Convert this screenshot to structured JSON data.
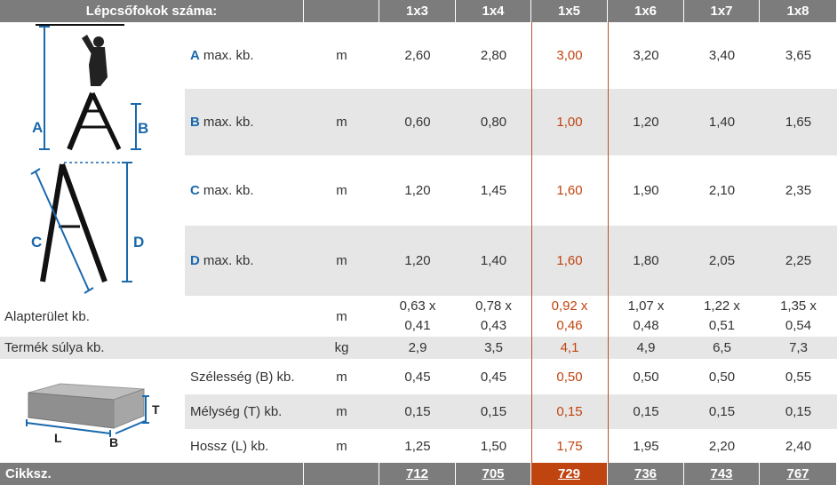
{
  "header": {
    "title": "Lépcsőfokok száma:",
    "columns": [
      "1x3",
      "1x4",
      "1x5",
      "1x6",
      "1x7",
      "1x8"
    ]
  },
  "highlight_color": "#c0440f",
  "header_color": "#7c7c7c",
  "accent_color": "#1a69ad",
  "rows": {
    "a": {
      "letter": "A",
      "label": "max. kb.",
      "unit": "m",
      "values": [
        "2,60",
        "2,80",
        "3,00",
        "3,20",
        "3,40",
        "3,65"
      ]
    },
    "b": {
      "letter": "B",
      "label": "max. kb.",
      "unit": "m",
      "values": [
        "0,60",
        "0,80",
        "1,00",
        "1,20",
        "1,40",
        "1,65"
      ]
    },
    "c": {
      "letter": "C",
      "label": "max. kb.",
      "unit": "m",
      "values": [
        "1,20",
        "1,45",
        "1,60",
        "1,90",
        "2,10",
        "2,35"
      ]
    },
    "d": {
      "letter": "D",
      "label": "max. kb.",
      "unit": "m",
      "values": [
        "1,20",
        "1,40",
        "1,60",
        "1,80",
        "2,05",
        "2,25"
      ]
    },
    "footprint": {
      "label": "Alapterület kb.",
      "unit": "m",
      "values": [
        [
          "0,63 x",
          "0,41"
        ],
        [
          "0,78 x",
          "0,43"
        ],
        [
          "0,92 x",
          "0,46"
        ],
        [
          "1,07 x",
          "0,48"
        ],
        [
          "1,22 x",
          "0,51"
        ],
        [
          "1,35 x",
          "0,54"
        ]
      ]
    },
    "weight": {
      "label": "Termék súlya kb.",
      "unit": "kg",
      "values": [
        "2,9",
        "3,5",
        "4,1",
        "4,9",
        "6,5",
        "7,3"
      ]
    },
    "width": {
      "label": "Szélesség (B) kb.",
      "unit": "m",
      "values": [
        "0,45",
        "0,45",
        "0,50",
        "0,50",
        "0,50",
        "0,55"
      ]
    },
    "depth": {
      "label": "Mélység (T) kb.",
      "unit": "m",
      "values": [
        "0,15",
        "0,15",
        "0,15",
        "0,15",
        "0,15",
        "0,15"
      ]
    },
    "length": {
      "label": "Hossz (L) kb.",
      "unit": "m",
      "values": [
        "1,25",
        "1,50",
        "1,75",
        "1,95",
        "2,20",
        "2,40"
      ]
    }
  },
  "footer": {
    "label": "Cikksz.",
    "values": [
      "712",
      "705",
      "729",
      "736",
      "743",
      "767"
    ]
  },
  "diagrams": {
    "ladder_letters": [
      "A",
      "B",
      "C",
      "D"
    ],
    "box_letters": [
      "T",
      "L",
      "B"
    ]
  }
}
